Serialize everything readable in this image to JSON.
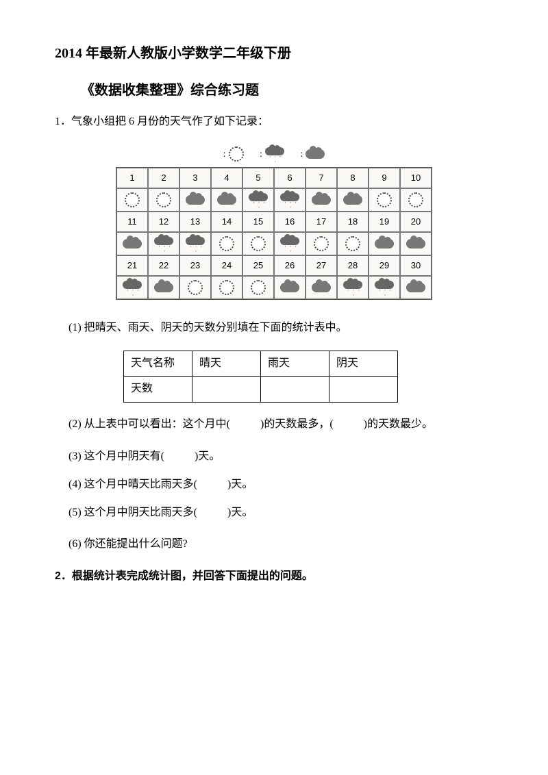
{
  "title1": "2014 年最新人教版小学数学二年级下册",
  "title2": "《数据收集整理》综合练习题",
  "q1_intro": "1．气象小组把 6 月份的天气作了如下记录：",
  "legend": {
    "colon": ":"
  },
  "calendar": {
    "days": [
      "1",
      "2",
      "3",
      "4",
      "5",
      "6",
      "7",
      "8",
      "9",
      "10",
      "11",
      "12",
      "13",
      "14",
      "15",
      "16",
      "17",
      "18",
      "19",
      "20",
      "21",
      "22",
      "23",
      "24",
      "25",
      "26",
      "27",
      "28",
      "29",
      "30"
    ],
    "weather": [
      "sun",
      "sun",
      "cloud",
      "cloud",
      "rain",
      "rain",
      "cloud",
      "cloud",
      "sun",
      "sun",
      "cloud",
      "rain",
      "rain",
      "sun",
      "sun",
      "rain",
      "sun",
      "sun",
      "cloud",
      "cloud",
      "rain",
      "cloud",
      "sun",
      "sun",
      "sun",
      "cloud",
      "cloud",
      "rain",
      "rain",
      "cloud"
    ]
  },
  "sub1": "(1) 把晴天、雨天、阴天的天数分别填在下面的统计表中。",
  "table": {
    "h1": "天气名称",
    "h2": "晴天",
    "h3": "雨天",
    "h4": "阴天",
    "r1": "天数"
  },
  "sub2a": "(2) 从上表中可以看出：这个月中(",
  "sub2b": ")的天数最多，(",
  "sub2c": ")的天数最少。",
  "sub3a": "(3) 这个月中阴天有(",
  "sub3b": ")天。",
  "sub4a": "(4) 这个月中晴天比雨天多(",
  "sub4b": ")天。",
  "sub5a": "(5) 这个月中阴天比雨天多(",
  "sub5b": ")天。",
  "sub6": "(6) 你还能提出什么问题?",
  "q2": "2．根据统计表完成统计图，并回答下面提出的问题。",
  "colors": {
    "text": "#000000",
    "bg": "#ffffff",
    "border": "#555555"
  }
}
